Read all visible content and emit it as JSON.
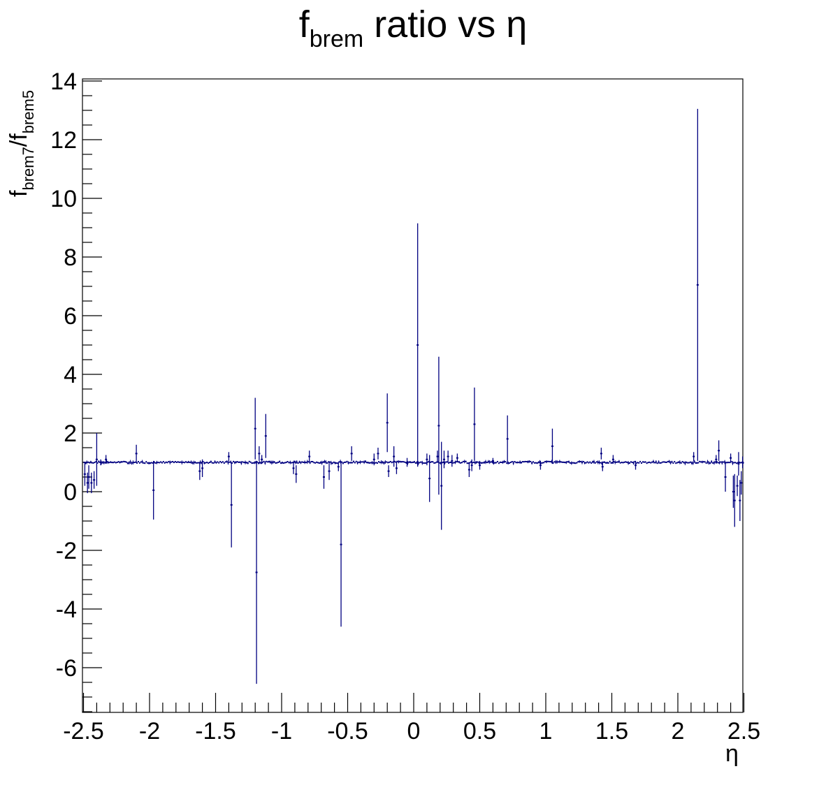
{
  "chart_data": {
    "type": "scatter",
    "title": {
      "main": "f",
      "sub": "brem",
      "rest": " ratio vs η"
    },
    "xlabel": "η",
    "ylabel": {
      "f1": "f",
      "sub1": "brem7",
      "slash": "/f",
      "sub2": "brem5"
    },
    "xlim": [
      -2.5,
      2.5
    ],
    "ylim": [
      -7.5,
      14.2
    ],
    "x_ticks": [
      -2.5,
      -2,
      -1.5,
      -1,
      -0.5,
      0,
      0.5,
      1,
      1.5,
      2,
      2.5
    ],
    "x_tick_labels": [
      "-2.5",
      "-2",
      "-1.5",
      "-1",
      "-0.5",
      "0",
      "0.5",
      "1",
      "1.5",
      "2",
      "2.5"
    ],
    "y_ticks": [
      -6,
      -4,
      -2,
      0,
      2,
      4,
      6,
      8,
      10,
      12,
      14
    ],
    "y_tick_labels": [
      "-6",
      "-4",
      "-2",
      "0",
      "2",
      "4",
      "6",
      "8",
      "10",
      "12",
      "14"
    ],
    "grid": false,
    "series": [
      {
        "color": "#000080",
        "baseline": 1.0,
        "points": [
          {
            "x": -2.49,
            "y": 0.6,
            "err": 0.4
          },
          {
            "x": -2.47,
            "y": 0.3,
            "err": 0.35
          },
          {
            "x": -2.46,
            "y": 0.5,
            "err": 0.4
          },
          {
            "x": -2.44,
            "y": 0.3,
            "err": 0.35
          },
          {
            "x": -2.42,
            "y": 0.4,
            "err": 0.3
          },
          {
            "x": -2.4,
            "y": 1.1,
            "err": 0.9
          },
          {
            "x": -2.37,
            "y": 1.0,
            "err": 0.1
          },
          {
            "x": -2.33,
            "y": 1.1,
            "err": 0.15
          },
          {
            "x": -2.1,
            "y": 1.3,
            "err": 0.3
          },
          {
            "x": -1.97,
            "y": 0.05,
            "err": 1.0
          },
          {
            "x": -1.62,
            "y": 0.7,
            "err": 0.3
          },
          {
            "x": -1.6,
            "y": 0.8,
            "err": 0.3
          },
          {
            "x": -1.4,
            "y": 1.2,
            "err": 0.15
          },
          {
            "x": -1.38,
            "y": -0.45,
            "err": 1.45
          },
          {
            "x": -1.2,
            "y": 2.15,
            "err": 1.05
          },
          {
            "x": -1.19,
            "y": -2.75,
            "err": 3.8
          },
          {
            "x": -1.17,
            "y": 1.3,
            "err": 0.25
          },
          {
            "x": -1.15,
            "y": 1.1,
            "err": 0.15
          },
          {
            "x": -1.12,
            "y": 1.9,
            "err": 0.75
          },
          {
            "x": -0.91,
            "y": 0.8,
            "err": 0.2
          },
          {
            "x": -0.89,
            "y": 0.6,
            "err": 0.3
          },
          {
            "x": -0.79,
            "y": 1.2,
            "err": 0.2
          },
          {
            "x": -0.68,
            "y": 0.5,
            "err": 0.4
          },
          {
            "x": -0.64,
            "y": 0.7,
            "err": 0.3
          },
          {
            "x": -0.57,
            "y": 0.85,
            "err": 0.15
          },
          {
            "x": -0.55,
            "y": -1.8,
            "err": 2.8
          },
          {
            "x": -0.47,
            "y": 1.3,
            "err": 0.25
          },
          {
            "x": -0.3,
            "y": 1.1,
            "err": 0.2
          },
          {
            "x": -0.27,
            "y": 1.3,
            "err": 0.2
          },
          {
            "x": -0.2,
            "y": 2.35,
            "err": 1.0
          },
          {
            "x": -0.19,
            "y": 0.7,
            "err": 0.2
          },
          {
            "x": -0.15,
            "y": 1.2,
            "err": 0.35
          },
          {
            "x": -0.13,
            "y": 0.8,
            "err": 0.2
          },
          {
            "x": -0.05,
            "y": 1.0,
            "err": 0.15
          },
          {
            "x": 0.03,
            "y": 5.0,
            "err": 4.15
          },
          {
            "x": 0.1,
            "y": 1.1,
            "err": 0.2
          },
          {
            "x": 0.12,
            "y": 0.45,
            "err": 0.8
          },
          {
            "x": 0.18,
            "y": 1.2,
            "err": 0.2
          },
          {
            "x": 0.19,
            "y": 2.25,
            "err": 2.35
          },
          {
            "x": 0.21,
            "y": 0.2,
            "err": 1.5
          },
          {
            "x": 0.23,
            "y": 1.1,
            "err": 0.3
          },
          {
            "x": 0.26,
            "y": 1.2,
            "err": 0.2
          },
          {
            "x": 0.29,
            "y": 1.05,
            "err": 0.2
          },
          {
            "x": 0.33,
            "y": 1.15,
            "err": 0.15
          },
          {
            "x": 0.42,
            "y": 0.75,
            "err": 0.25
          },
          {
            "x": 0.44,
            "y": 0.9,
            "err": 0.2
          },
          {
            "x": 0.46,
            "y": 2.3,
            "err": 1.25
          },
          {
            "x": 0.5,
            "y": 0.9,
            "err": 0.15
          },
          {
            "x": 0.6,
            "y": 1.05,
            "err": 0.1
          },
          {
            "x": 0.71,
            "y": 1.8,
            "err": 0.8
          },
          {
            "x": 0.96,
            "y": 0.9,
            "err": 0.15
          },
          {
            "x": 1.05,
            "y": 1.55,
            "err": 0.6
          },
          {
            "x": 1.42,
            "y": 1.3,
            "err": 0.2
          },
          {
            "x": 1.43,
            "y": 0.85,
            "err": 0.15
          },
          {
            "x": 1.51,
            "y": 1.1,
            "err": 0.15
          },
          {
            "x": 1.68,
            "y": 0.9,
            "err": 0.15
          },
          {
            "x": 2.12,
            "y": 1.2,
            "err": 0.15
          },
          {
            "x": 2.15,
            "y": 7.05,
            "err": 6.0
          },
          {
            "x": 2.29,
            "y": 1.1,
            "err": 0.15
          },
          {
            "x": 2.31,
            "y": 1.4,
            "err": 0.35
          },
          {
            "x": 2.36,
            "y": 0.5,
            "err": 0.5
          },
          {
            "x": 2.4,
            "y": 1.15,
            "err": 0.15
          },
          {
            "x": 2.42,
            "y": 0.0,
            "err": 0.55
          },
          {
            "x": 2.43,
            "y": -0.3,
            "err": 0.9
          },
          {
            "x": 2.45,
            "y": 0.2,
            "err": 0.35
          },
          {
            "x": 2.46,
            "y": 0.95,
            "err": 0.4
          },
          {
            "x": 2.47,
            "y": -0.3,
            "err": 0.7
          },
          {
            "x": 2.48,
            "y": 0.3,
            "err": 0.4
          },
          {
            "x": 2.49,
            "y": 1.0,
            "err": 0.2
          }
        ]
      }
    ]
  }
}
